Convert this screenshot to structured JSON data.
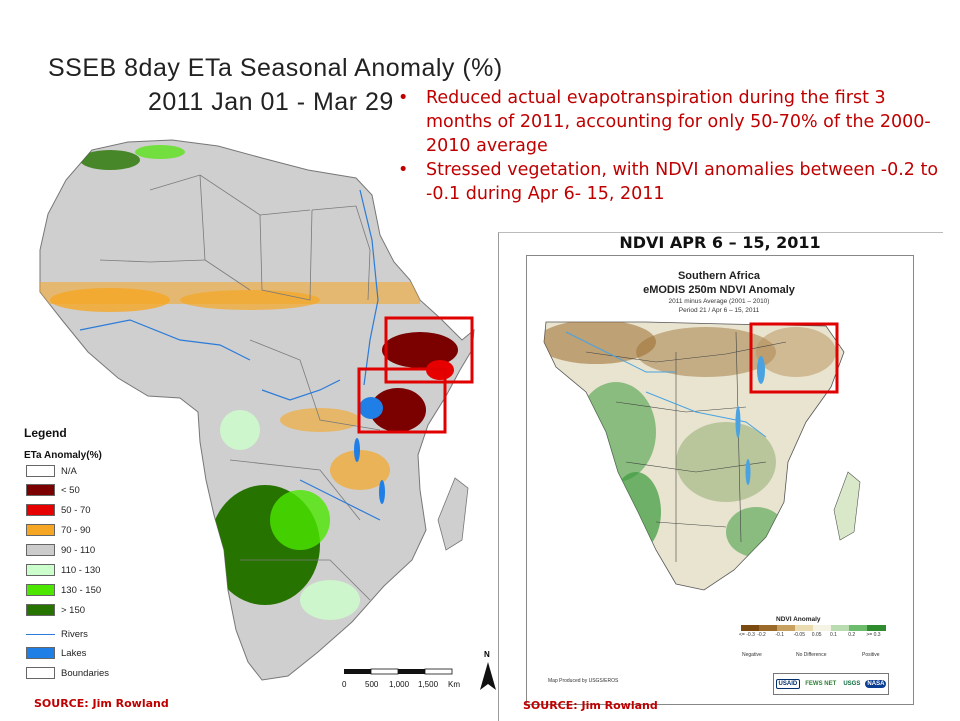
{
  "title": {
    "line1": "SSEB 8day ETa Seasonal Anomaly (%)",
    "line2": "2011 Jan 01 - Mar 29"
  },
  "bullets": [
    "Reduced actual evapotranspiration during the first 3 months of 2011, accounting for only 50-70% of the 2000-2010 average",
    "Stressed vegetation, with NDVI anomalies between -0.2 to -0.1 during Apr 6- 15, 2011"
  ],
  "bullet_glyph": "•",
  "legend": {
    "title": "Legend",
    "subtitle": "ETa Anomaly(%)",
    "items": [
      {
        "label": "N/A",
        "color": "#ffffff"
      },
      {
        "label": "< 50",
        "color": "#7b0000"
      },
      {
        "label": "50 - 70",
        "color": "#e60000"
      },
      {
        "label": "70 - 90",
        "color": "#f5a623"
      },
      {
        "label": "90 - 110",
        "color": "#cccccc"
      },
      {
        "label": "110 - 130",
        "color": "#ccffcc"
      },
      {
        "label": "130 - 150",
        "color": "#4ce600"
      },
      {
        "label": "> 150",
        "color": "#267300"
      }
    ],
    "rivers": "Rivers",
    "lakes": {
      "label": "Lakes",
      "color": "#1f7fe6"
    },
    "boundaries": "Boundaries"
  },
  "scale_bar": {
    "ticks": [
      "0",
      "500",
      "1,000",
      "1,500"
    ],
    "unit": "Km",
    "north": "N"
  },
  "ndvi_panel": {
    "header": "NDVI APR 6 – 15, 2011",
    "title1": "Southern Africa",
    "title2": "eMODIS 250m NDVI Anomaly",
    "title3": "2011 minus Average (2001 – 2010)",
    "title4": "Period 21 / Apr 6 – 15, 2011",
    "legend_title": "NDVI Anomaly",
    "legend_ticks": [
      "<= -0.3",
      "-0.2",
      "-0.1",
      "-0.05",
      "0.05",
      "0.1",
      "0.2",
      ">= 0.3"
    ],
    "legend_cats": [
      "Negative",
      "No Difference",
      "Positive"
    ],
    "map_credit": "Map Produced by USGS/EROS",
    "logos": [
      "USAID",
      "FEWS NET",
      "USGS",
      "NASA"
    ]
  },
  "sources": {
    "left": "SOURCE: Jim Rowland",
    "right": "SOURCE: Jim Rowland"
  },
  "colors": {
    "accent_red": "#c00000",
    "highlight_box": "#e00000",
    "land_gray": "#cfcfcf",
    "ndvi_brown": "#9a6a2a",
    "ndvi_green": "#3c9a3c",
    "ndvi_neutral": "#e8e4d0"
  },
  "icons": [
    "north-arrow-icon",
    "bullet-icon"
  ]
}
